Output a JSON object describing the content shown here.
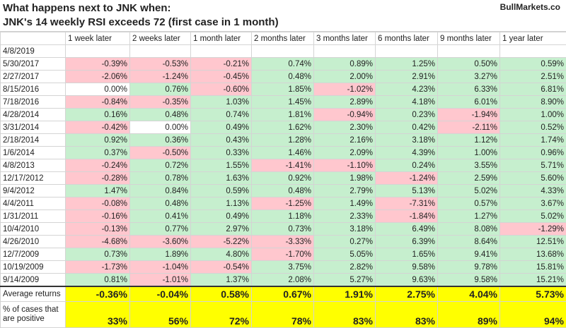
{
  "header": {
    "title_line1": "What happens next to JNK when:",
    "title_line2": "JNK's 14 weekly RSI exceeds 72 (first case in 1 month)",
    "brand": "BullMarkets.co"
  },
  "columns": [
    "",
    "1 week later",
    "2 weeks later",
    "1 month later",
    "2 months later",
    "3 months later",
    "6 months later",
    "9 months later",
    "1 year later"
  ],
  "rows": [
    {
      "date": "4/8/2019",
      "values": [
        "",
        "",
        "",
        "",
        "",
        "",
        "",
        ""
      ]
    },
    {
      "date": "5/30/2017",
      "values": [
        "-0.39%",
        "-0.53%",
        "-0.21%",
        "0.74%",
        "0.89%",
        "1.25%",
        "0.50%",
        "0.59%"
      ]
    },
    {
      "date": "2/27/2017",
      "values": [
        "-2.06%",
        "-1.24%",
        "-0.45%",
        "0.48%",
        "2.00%",
        "2.91%",
        "3.27%",
        "2.51%"
      ]
    },
    {
      "date": "8/15/2016",
      "values": [
        "0.00%",
        "0.76%",
        "-0.60%",
        "1.85%",
        "-1.02%",
        "4.23%",
        "6.33%",
        "6.81%"
      ]
    },
    {
      "date": "7/18/2016",
      "values": [
        "-0.84%",
        "-0.35%",
        "1.03%",
        "1.45%",
        "2.89%",
        "4.18%",
        "6.01%",
        "8.90%"
      ]
    },
    {
      "date": "4/28/2014",
      "values": [
        "0.16%",
        "0.48%",
        "0.74%",
        "1.81%",
        "-0.94%",
        "0.23%",
        "-1.94%",
        "1.00%"
      ]
    },
    {
      "date": "3/31/2014",
      "values": [
        "-0.42%",
        "0.00%",
        "0.49%",
        "1.62%",
        "2.30%",
        "0.42%",
        "-2.11%",
        "0.52%"
      ]
    },
    {
      "date": "2/18/2014",
      "values": [
        "0.92%",
        "0.36%",
        "0.43%",
        "1.28%",
        "2.16%",
        "3.18%",
        "1.12%",
        "1.74%"
      ]
    },
    {
      "date": "1/6/2014",
      "values": [
        "0.37%",
        "-0.50%",
        "0.33%",
        "1.46%",
        "2.09%",
        "4.39%",
        "1.00%",
        "0.96%"
      ]
    },
    {
      "date": "4/8/2013",
      "values": [
        "-0.24%",
        "0.72%",
        "1.55%",
        "-1.41%",
        "-1.10%",
        "0.24%",
        "3.55%",
        "5.71%"
      ]
    },
    {
      "date": "12/17/2012",
      "values": [
        "-0.28%",
        "0.78%",
        "1.63%",
        "0.92%",
        "1.98%",
        "-1.24%",
        "2.59%",
        "5.60%"
      ]
    },
    {
      "date": "9/4/2012",
      "values": [
        "1.47%",
        "0.84%",
        "0.59%",
        "0.48%",
        "2.79%",
        "5.13%",
        "5.02%",
        "4.33%"
      ]
    },
    {
      "date": "4/4/2011",
      "values": [
        "-0.08%",
        "0.48%",
        "1.13%",
        "-1.25%",
        "1.49%",
        "-7.31%",
        "0.57%",
        "3.67%"
      ]
    },
    {
      "date": "1/31/2011",
      "values": [
        "-0.16%",
        "0.41%",
        "0.49%",
        "1.18%",
        "2.33%",
        "-1.84%",
        "1.27%",
        "5.02%"
      ]
    },
    {
      "date": "10/4/2010",
      "values": [
        "-0.13%",
        "0.77%",
        "2.97%",
        "0.73%",
        "3.18%",
        "6.49%",
        "8.08%",
        "-1.29%"
      ]
    },
    {
      "date": "4/26/2010",
      "values": [
        "-4.68%",
        "-3.60%",
        "-5.22%",
        "-3.33%",
        "0.27%",
        "6.39%",
        "8.64%",
        "12.51%"
      ]
    },
    {
      "date": "12/7/2009",
      "values": [
        "0.73%",
        "1.89%",
        "4.80%",
        "-1.70%",
        "5.05%",
        "1.65%",
        "9.41%",
        "13.68%"
      ]
    },
    {
      "date": "10/19/2009",
      "values": [
        "-1.73%",
        "-1.04%",
        "-0.54%",
        "3.75%",
        "2.82%",
        "9.58%",
        "9.78%",
        "15.81%"
      ]
    },
    {
      "date": "9/14/2009",
      "values": [
        "0.81%",
        "-1.01%",
        "1.37%",
        "2.08%",
        "5.27%",
        "9.63%",
        "9.58%",
        "15.21%"
      ]
    }
  ],
  "summary": {
    "average_label": "Average returns",
    "average": [
      "-0.36%",
      "-0.04%",
      "0.58%",
      "0.67%",
      "1.91%",
      "2.75%",
      "4.04%",
      "5.73%"
    ],
    "positive_label": "% of cases that are positive",
    "positive": [
      "33%",
      "56%",
      "72%",
      "78%",
      "83%",
      "83%",
      "89%",
      "94%"
    ]
  },
  "colors": {
    "positive": "#c6efce",
    "negative": "#ffc7ce",
    "summary": "#ffff00"
  }
}
